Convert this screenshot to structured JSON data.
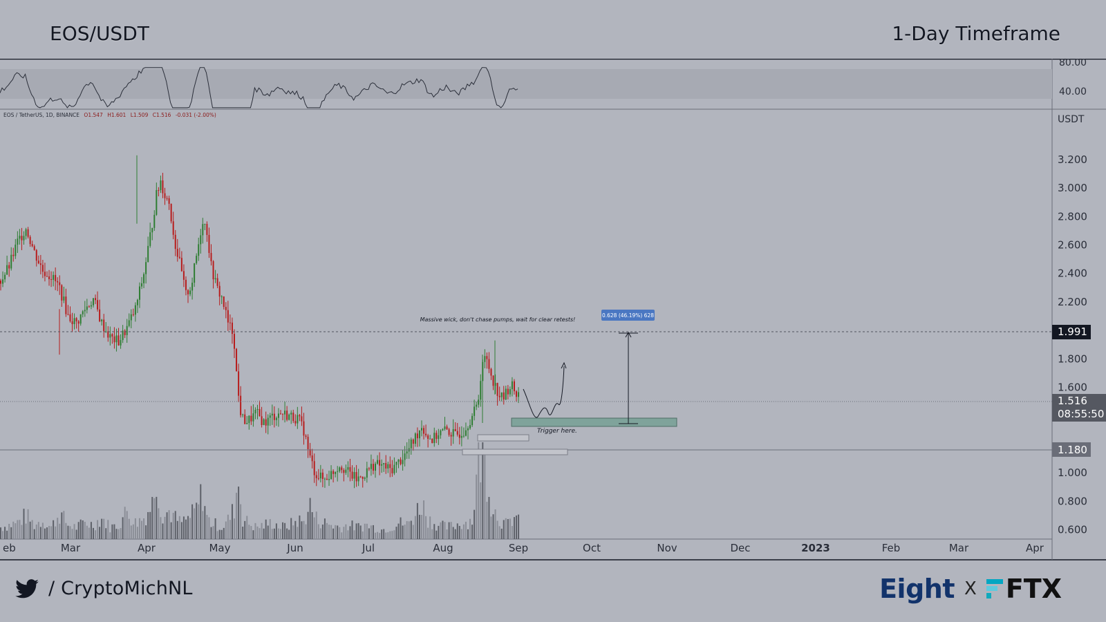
{
  "header": {
    "pair": "EOS/USDT",
    "timeframe": "1-Day Timeframe"
  },
  "footer": {
    "handle": "/ CryptoMichNL",
    "brand_left": "Eight",
    "brand_sep": "X",
    "brand_right": "FTX"
  },
  "colors": {
    "background": "#b2b5be",
    "bull": "#2e7d32",
    "bear": "#b71c1c",
    "zone": "#7fa39b",
    "label_bg": "#4a77c2"
  },
  "chart_data": {
    "type": "candlestick",
    "symbol_line": "EOS / TetherUS, 1D, BINANCE",
    "ohlc_line": {
      "open": "O1.547",
      "high": "H1.601",
      "low": "L1.509",
      "close": "C1.516",
      "change": "-0.031 (-2.00%)"
    },
    "axis_unit": "USDT",
    "y_ticks": [
      "3.200",
      "3.000",
      "2.800",
      "2.600",
      "2.400",
      "2.200",
      "1.800",
      "1.600",
      "1.000",
      "0.800",
      "0.600"
    ],
    "x_ticks": [
      "Feb",
      "Mar",
      "Apr",
      "May",
      "Jun",
      "Jul",
      "Aug",
      "Sep",
      "Oct",
      "Nov",
      "Dec",
      "2023",
      "Feb",
      "Mar",
      "Apr"
    ],
    "ylim": [
      0.6,
      3.45
    ],
    "price_markers": {
      "resistance": "1.991",
      "last_price": "1.516",
      "countdown": "08:55:50",
      "support": "1.180"
    },
    "rsi_ticks": [
      "80.00",
      "40.00"
    ],
    "price_path": [
      [
        0,
        2.35
      ],
      [
        6,
        2.45
      ],
      [
        12,
        2.62
      ],
      [
        18,
        2.72
      ],
      [
        24,
        2.55
      ],
      [
        30,
        2.42
      ],
      [
        36,
        2.38
      ],
      [
        42,
        2.3
      ],
      [
        48,
        2.1
      ],
      [
        54,
        2.05
      ],
      [
        60,
        2.15
      ],
      [
        66,
        2.22
      ],
      [
        72,
        2.05
      ],
      [
        78,
        1.95
      ],
      [
        84,
        1.92
      ],
      [
        90,
        2.02
      ],
      [
        96,
        2.15
      ],
      [
        102,
        2.4
      ],
      [
        108,
        2.75
      ],
      [
        111,
        2.95
      ],
      [
        114,
        3.05
      ],
      [
        117,
        2.95
      ],
      [
        120,
        2.9
      ],
      [
        124,
        2.62
      ],
      [
        128,
        2.45
      ],
      [
        132,
        2.25
      ],
      [
        136,
        2.32
      ],
      [
        140,
        2.55
      ],
      [
        144,
        2.78
      ],
      [
        147,
        2.7
      ],
      [
        150,
        2.45
      ],
      [
        154,
        2.3
      ],
      [
        158,
        2.22
      ],
      [
        162,
        2.05
      ],
      [
        166,
        1.98
      ],
      [
        168,
        1.7
      ],
      [
        170,
        1.48
      ],
      [
        172,
        1.38
      ],
      [
        176,
        1.36
      ],
      [
        182,
        1.42
      ],
      [
        188,
        1.35
      ],
      [
        194,
        1.4
      ],
      [
        200,
        1.42
      ],
      [
        206,
        1.4
      ],
      [
        212,
        1.38
      ],
      [
        216,
        1.3
      ],
      [
        220,
        1.12
      ],
      [
        224,
        1.0
      ],
      [
        230,
        0.95
      ],
      [
        236,
        1.0
      ],
      [
        242,
        1.06
      ],
      [
        248,
        1.0
      ],
      [
        254,
        0.95
      ],
      [
        260,
        1.0
      ],
      [
        266,
        1.06
      ],
      [
        272,
        1.05
      ],
      [
        278,
        1.02
      ],
      [
        284,
        1.08
      ],
      [
        290,
        1.15
      ],
      [
        296,
        1.26
      ],
      [
        300,
        1.33
      ],
      [
        304,
        1.26
      ],
      [
        308,
        1.23
      ],
      [
        312,
        1.28
      ],
      [
        318,
        1.3
      ],
      [
        324,
        1.26
      ],
      [
        330,
        1.3
      ],
      [
        336,
        1.4
      ],
      [
        340,
        1.48
      ],
      [
        343,
        1.78
      ],
      [
        346,
        1.8
      ],
      [
        349,
        1.71
      ],
      [
        352,
        1.62
      ],
      [
        355,
        1.55
      ],
      [
        358,
        1.52
      ],
      [
        361,
        1.58
      ],
      [
        364,
        1.62
      ],
      [
        367,
        1.56
      ],
      [
        370,
        1.55
      ]
    ],
    "volume_path": [
      [
        0,
        0.1
      ],
      [
        6,
        0.12
      ],
      [
        12,
        0.14
      ],
      [
        18,
        0.2
      ],
      [
        24,
        0.12
      ],
      [
        30,
        0.16
      ],
      [
        36,
        0.1
      ],
      [
        42,
        0.22
      ],
      [
        48,
        0.12
      ],
      [
        54,
        0.1
      ],
      [
        60,
        0.14
      ],
      [
        66,
        0.12
      ],
      [
        72,
        0.18
      ],
      [
        78,
        0.1
      ],
      [
        84,
        0.12
      ],
      [
        90,
        0.24
      ],
      [
        96,
        0.14
      ],
      [
        102,
        0.18
      ],
      [
        108,
        0.3
      ],
      [
        111,
        0.58
      ],
      [
        114,
        0.26
      ],
      [
        117,
        0.2
      ],
      [
        120,
        0.24
      ],
      [
        124,
        0.18
      ],
      [
        128,
        0.14
      ],
      [
        132,
        0.16
      ],
      [
        136,
        0.2
      ],
      [
        140,
        0.26
      ],
      [
        144,
        0.4
      ],
      [
        147,
        0.18
      ],
      [
        150,
        0.14
      ],
      [
        154,
        0.12
      ],
      [
        158,
        0.1
      ],
      [
        162,
        0.16
      ],
      [
        166,
        0.24
      ],
      [
        168,
        0.4
      ],
      [
        170,
        0.52
      ],
      [
        172,
        0.18
      ],
      [
        176,
        0.14
      ],
      [
        182,
        0.1
      ],
      [
        188,
        0.12
      ],
      [
        194,
        0.14
      ],
      [
        200,
        0.1
      ],
      [
        206,
        0.12
      ],
      [
        212,
        0.16
      ],
      [
        216,
        0.14
      ],
      [
        220,
        0.3
      ],
      [
        224,
        0.18
      ],
      [
        230,
        0.14
      ],
      [
        236,
        0.12
      ],
      [
        242,
        0.1
      ],
      [
        248,
        0.12
      ],
      [
        254,
        0.1
      ],
      [
        260,
        0.12
      ],
      [
        266,
        0.1
      ],
      [
        272,
        0.08
      ],
      [
        278,
        0.1
      ],
      [
        284,
        0.14
      ],
      [
        290,
        0.12
      ],
      [
        296,
        0.22
      ],
      [
        300,
        0.32
      ],
      [
        304,
        0.18
      ],
      [
        308,
        0.14
      ],
      [
        312,
        0.12
      ],
      [
        318,
        0.1
      ],
      [
        324,
        0.12
      ],
      [
        330,
        0.14
      ],
      [
        336,
        0.16
      ],
      [
        340,
        0.6
      ],
      [
        343,
        0.78
      ],
      [
        346,
        0.6
      ],
      [
        349,
        0.36
      ],
      [
        352,
        0.24
      ],
      [
        355,
        0.18
      ],
      [
        358,
        0.14
      ],
      [
        361,
        0.12
      ],
      [
        364,
        0.16
      ],
      [
        367,
        0.2
      ],
      [
        370,
        0.12
      ]
    ],
    "annotations": {
      "wick_note": "Massive wick, don't chase pumps, wait for clear retests!",
      "fib_label": "0.628 (46.19%) 628",
      "trigger_note": "Trigger here."
    }
  }
}
